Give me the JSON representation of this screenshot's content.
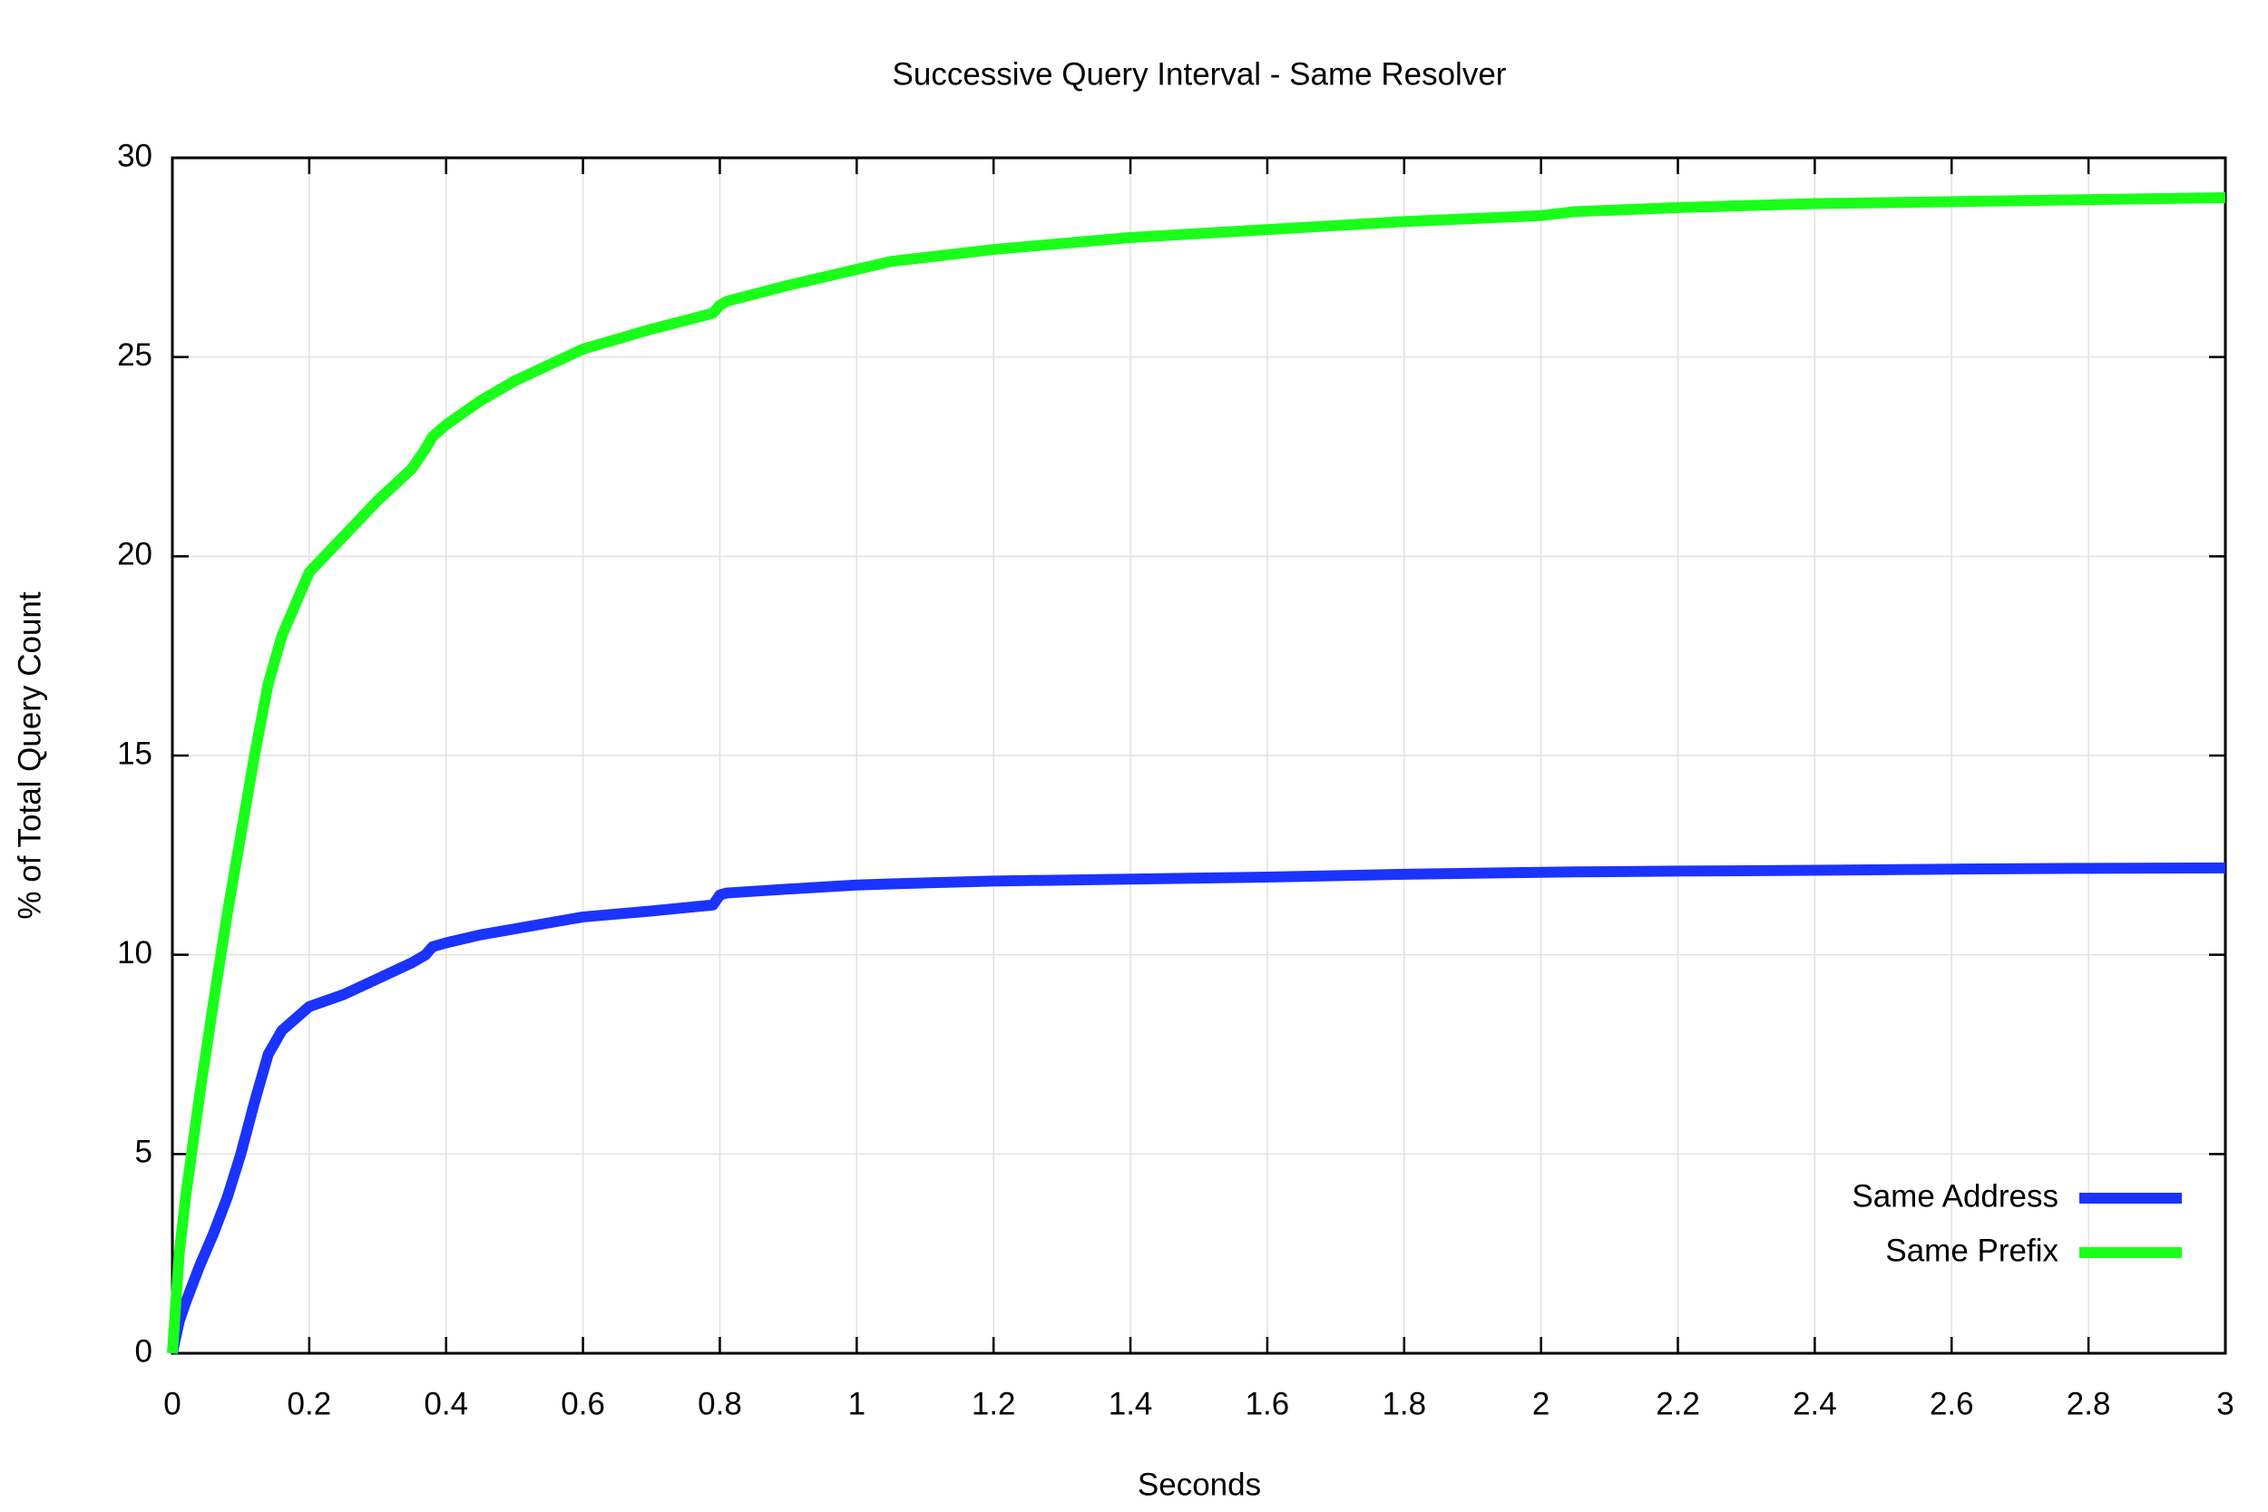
{
  "chart_data": {
    "type": "line",
    "title": "Successive Query Interval - Same Resolver",
    "x_label": "Seconds",
    "y_label": "% of Total Query Count",
    "x": [
      0,
      0.01,
      0.02,
      0.04,
      0.06,
      0.08,
      0.1,
      0.12,
      0.14,
      0.16,
      0.18,
      0.2,
      0.25,
      0.3,
      0.35,
      0.37,
      0.38,
      0.4,
      0.45,
      0.5,
      0.55,
      0.6,
      0.7,
      0.79,
      0.8,
      0.81,
      0.9,
      1,
      1.05,
      1.2,
      1.4,
      1.6,
      1.8,
      2,
      2.05,
      2.2,
      2.4,
      2.6,
      2.8,
      3
    ],
    "series": [
      {
        "name": "Same Address",
        "color": "#1a33ff",
        "values": [
          0,
          0.8,
          1.3,
          2.2,
          3.0,
          3.9,
          5.0,
          6.3,
          7.5,
          8.1,
          8.4,
          8.7,
          9.0,
          9.4,
          9.8,
          10.0,
          10.2,
          10.3,
          10.5,
          10.65,
          10.8,
          10.95,
          11.1,
          11.25,
          11.5,
          11.55,
          11.65,
          11.75,
          11.78,
          11.85,
          11.9,
          11.95,
          12.02,
          12.07,
          12.08,
          12.1,
          12.12,
          12.15,
          12.17,
          12.18
        ]
      },
      {
        "name": "Same Prefix",
        "color": "#1aff1a",
        "values": [
          0,
          2.5,
          4.0,
          6.5,
          8.8,
          11.0,
          13.0,
          15.0,
          16.8,
          18.0,
          18.8,
          19.6,
          20.5,
          21.4,
          22.2,
          22.7,
          23.0,
          23.3,
          23.9,
          24.4,
          24.8,
          25.2,
          25.7,
          26.1,
          26.3,
          26.4,
          26.8,
          27.2,
          27.4,
          27.7,
          28.0,
          28.2,
          28.4,
          28.55,
          28.65,
          28.75,
          28.85,
          28.9,
          28.95,
          29.0
        ]
      }
    ],
    "xlim": [
      0,
      3
    ],
    "xticks": [
      0,
      0.2,
      0.4,
      0.6,
      0.8,
      1,
      1.2,
      1.4,
      1.6,
      1.8,
      2,
      2.2,
      2.4,
      2.6,
      2.8,
      3
    ],
    "ylim": [
      0,
      30
    ],
    "yticks": [
      0,
      5,
      10,
      15,
      20,
      25,
      30
    ],
    "grid": true,
    "legend": "lower right"
  }
}
